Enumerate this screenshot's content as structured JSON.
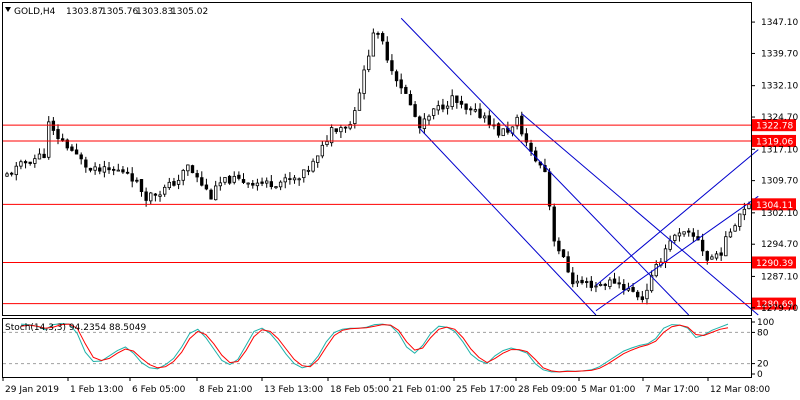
{
  "header": {
    "symbol": "GOLD,H4",
    "open": "1303.87",
    "high": "1305.76",
    "low": "1303.83",
    "close": "1305.02"
  },
  "chart_data": [
    {
      "type": "candlestick",
      "symbol": "GOLD",
      "timeframe": "H4",
      "ylim": [
        1278.0,
        1351.6
      ],
      "y_ticks": [
        "1347.10",
        "1339.70",
        "1332.10",
        "1324.70",
        "1317.10",
        "1309.70",
        "1302.10",
        "1294.70",
        "1287.10",
        "1279.70"
      ],
      "x_ticks": [
        "29 Jan 2019",
        "1 Feb 13:00",
        "6 Feb 05:00",
        "8 Feb 21:00",
        "13 Feb 13:00",
        "18 Feb 05:00",
        "21 Feb 01:00",
        "25 Feb 17:00",
        "28 Feb 09:00",
        "5 Mar 01:00",
        "7 Mar 17:00",
        "12 Mar 08:00"
      ],
      "close_path": [
        [
          0,
          1311
        ],
        [
          4,
          1314
        ],
        [
          8,
          1316
        ],
        [
          9,
          1323
        ],
        [
          10,
          1321
        ],
        [
          13,
          1318
        ],
        [
          18,
          1312
        ],
        [
          26,
          1312
        ],
        [
          30,
          1306
        ],
        [
          33,
          1307
        ],
        [
          37,
          1310
        ],
        [
          39,
          1313
        ],
        [
          44,
          1306
        ],
        [
          46,
          1309
        ],
        [
          48,
          1310
        ],
        [
          56,
          1309
        ],
        [
          63,
          1310
        ],
        [
          67,
          1315
        ],
        [
          70,
          1322
        ],
        [
          74,
          1323
        ],
        [
          77,
          1335
        ],
        [
          79,
          1345
        ],
        [
          81,
          1342
        ],
        [
          83,
          1336
        ],
        [
          86,
          1330
        ],
        [
          89,
          1322
        ],
        [
          92,
          1326
        ],
        [
          96,
          1329
        ],
        [
          99,
          1326
        ],
        [
          103,
          1325
        ],
        [
          106,
          1321
        ],
        [
          109,
          1322
        ],
        [
          110,
          1324
        ],
        [
          113,
          1316
        ],
        [
          116,
          1312
        ],
        [
          118,
          1296
        ],
        [
          122,
          1286
        ],
        [
          127,
          1285
        ],
        [
          131,
          1286
        ],
        [
          134,
          1284
        ],
        [
          137,
          1282
        ],
        [
          140,
          1289
        ],
        [
          143,
          1296
        ],
        [
          146,
          1297
        ],
        [
          149,
          1296
        ],
        [
          151,
          1291
        ],
        [
          154,
          1293
        ],
        [
          156,
          1298
        ],
        [
          158,
          1302
        ],
        [
          160,
          1305
        ]
      ],
      "horizontal_levels": [
        {
          "value": 1322.78,
          "label": "1322.78",
          "color": "#ff0000"
        },
        {
          "value": 1319.06,
          "label": "1319.06",
          "color": "#ff0000"
        },
        {
          "value": 1304.11,
          "label": "1304.11",
          "color": "#ff0000"
        },
        {
          "value": 1290.39,
          "label": "1290.39",
          "color": "#ff0000"
        },
        {
          "value": 1280.69,
          "label": "1280.69",
          "color": "#ff0000"
        }
      ],
      "trend_channels": [
        {
          "name": "down-channel",
          "color": "#0000cd",
          "lines": [
            [
              [
                85,
                1348
              ],
              [
                147,
                1278
              ]
            ],
            [
              [
                89,
                1322
              ],
              [
                127,
                1278
              ]
            ],
            [
              [
                111,
                1325.5
              ],
              [
                162,
                1278
              ]
            ]
          ]
        },
        {
          "name": "up-channel",
          "color": "#0000cd",
          "lines": [
            [
              [
                127,
                1285
              ],
              [
                162,
                1317
              ]
            ],
            [
              [
                127,
                1279
              ],
              [
                162,
                1306
              ]
            ]
          ]
        }
      ],
      "colors": {
        "bull": "#ffffff",
        "bear": "#000000",
        "outline": "#000000"
      },
      "grid": false
    },
    {
      "type": "line",
      "title": "Stoch(14,3,3) 94.2354 88.5049",
      "indicator": "Stoch(14,3,3)",
      "main_value": "94.2354",
      "signal_value": "88.5049",
      "ylim": [
        0,
        100
      ],
      "y_ticks": [
        "100",
        "80",
        "20",
        "0"
      ],
      "levels": [
        80,
        20
      ],
      "series": [
        {
          "color": "#20b2aa",
          "values": [
            96,
            95,
            92,
            85,
            95,
            97,
            96,
            78,
            42,
            24,
            25,
            35,
            45,
            52,
            40,
            22,
            12,
            10,
            18,
            30,
            52,
            78,
            86,
            70,
            48,
            26,
            18,
            28,
            55,
            82,
            88,
            78,
            60,
            38,
            20,
            12,
            16,
            35,
            62,
            80,
            86,
            88,
            88,
            90,
            95,
            96,
            93,
            78,
            52,
            40,
            55,
            78,
            92,
            90,
            82,
            62,
            38,
            26,
            20,
            35,
            45,
            50,
            46,
            40,
            20,
            8,
            4,
            4,
            6,
            5,
            6,
            8,
            14,
            24,
            34,
            44,
            50,
            55,
            58,
            68,
            88,
            95,
            94,
            88,
            70,
            75,
            84,
            90,
            96
          ]
        },
        {
          "color": "#ff0000",
          "values": [
            92,
            94,
            92,
            88,
            90,
            95,
            96,
            88,
            58,
            32,
            26,
            30,
            40,
            48,
            44,
            30,
            18,
            12,
            14,
            24,
            42,
            68,
            82,
            76,
            58,
            36,
            22,
            24,
            45,
            72,
            85,
            82,
            68,
            48,
            28,
            16,
            14,
            28,
            52,
            74,
            84,
            87,
            88,
            89,
            92,
            95,
            94,
            84,
            62,
            46,
            50,
            70,
            86,
            90,
            86,
            70,
            48,
            32,
            22,
            30,
            40,
            47,
            47,
            43,
            28,
            12,
            6,
            4,
            5,
            5,
            6,
            7,
            11,
            19,
            29,
            39,
            46,
            52,
            56,
            63,
            80,
            91,
            94,
            90,
            76,
            74,
            80,
            86,
            89
          ]
        }
      ]
    }
  ]
}
